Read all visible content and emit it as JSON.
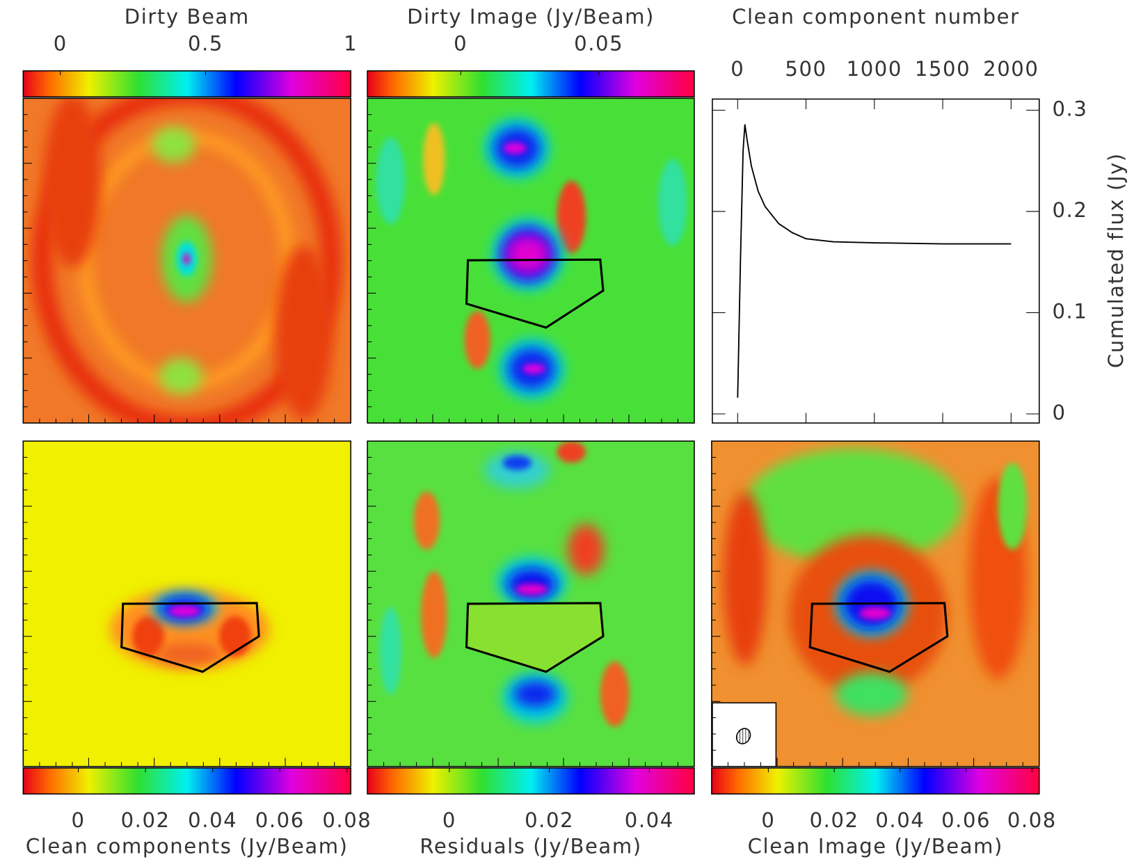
{
  "chart_data": [
    {
      "type": "image",
      "title": "Dirty Beam",
      "clim": [
        -0.128,
        1.0
      ],
      "cticks": [
        0,
        0.5,
        1
      ]
    },
    {
      "type": "image",
      "title": "Dirty Image (Jy/Beam)",
      "clim": [
        -0.0338,
        0.0846
      ],
      "cticks": [
        0,
        0.05
      ]
    },
    {
      "type": "image",
      "title": "Clean components (Jy/Beam)",
      "clim": [
        -0.0164,
        0.0811
      ],
      "cticks": [
        0,
        0.02,
        0.04,
        0.06,
        0.08
      ]
    },
    {
      "type": "image",
      "title": "Residuals (Jy/Beam)",
      "clim": [
        -0.0164,
        0.049
      ],
      "cticks": [
        0,
        0.02,
        0.04
      ]
    },
    {
      "type": "image",
      "title": "Clean Image (Jy/Beam)",
      "clim": [
        -0.0172,
        0.0822
      ],
      "cticks": [
        0,
        0.02,
        0.04,
        0.06,
        0.08
      ]
    },
    {
      "type": "line",
      "xlabel": "Clean component number",
      "ylabel": "Cumulated flux (Jy)",
      "x": [
        0,
        20,
        40,
        53,
        70,
        100,
        150,
        200,
        300,
        400,
        500,
        700,
        1000,
        1500,
        2000
      ],
      "values": [
        0.016,
        0.15,
        0.26,
        0.286,
        0.27,
        0.245,
        0.22,
        0.205,
        0.188,
        0.179,
        0.173,
        0.17,
        0.169,
        0.168,
        0.168
      ],
      "color": "#000000",
      "xlim": [
        -185,
        2206
      ],
      "xticks": [
        0,
        500,
        1000,
        1500,
        2000
      ],
      "ylim": [
        -0.009,
        0.311
      ],
      "yticks": [
        0,
        0.1,
        0.2,
        0.3
      ]
    }
  ]
}
